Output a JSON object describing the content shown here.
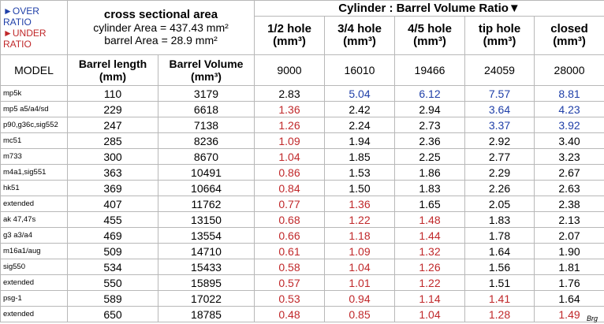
{
  "legend": [
    {
      "text": "►OVER RATIO",
      "tone": "over"
    },
    {
      "text": "►UNDER RATIO",
      "tone": "under"
    }
  ],
  "tones": {
    "over": "#1f3fa8",
    "under": "#c0282a",
    "normal": "#000000"
  },
  "area": {
    "title": "cross sectional area",
    "cylinder": "cylinder Area = 437.43 mm²",
    "barrel": "barrel Area = 28.9 mm²"
  },
  "ratio_title": "Cylinder : Barrel Volume Ratio▼",
  "columns": [
    {
      "name": "1/2 hole",
      "unit": "(mm³)",
      "volume": "9000"
    },
    {
      "name": "3/4 hole",
      "unit": "(mm³)",
      "volume": "16010"
    },
    {
      "name": "4/5 hole",
      "unit": "(mm³)",
      "volume": "19466"
    },
    {
      "name": "tip hole",
      "unit": "(mm³)",
      "volume": "24059"
    },
    {
      "name": "closed",
      "unit": "(mm³)",
      "volume": "28000"
    }
  ],
  "labels": {
    "model": "MODEL",
    "length": "Barrel length (mm)",
    "volume": "Barrel Volume (mm³)"
  },
  "rows": [
    {
      "model": "mp5k",
      "length": "110",
      "volume": "3179",
      "ratios": [
        "2.83",
        "5.04",
        "6.12",
        "7.57",
        "8.81"
      ],
      "tones": [
        "normal",
        "over",
        "over",
        "over",
        "over"
      ]
    },
    {
      "model": "mp5 a5/a4/sd",
      "length": "229",
      "volume": "6618",
      "ratios": [
        "1.36",
        "2.42",
        "2.94",
        "3.64",
        "4.23"
      ],
      "tones": [
        "under",
        "normal",
        "normal",
        "over",
        "over"
      ]
    },
    {
      "model": "p90,g36c,sig552",
      "length": "247",
      "volume": "7138",
      "ratios": [
        "1.26",
        "2.24",
        "2.73",
        "3.37",
        "3.92"
      ],
      "tones": [
        "under",
        "normal",
        "normal",
        "over",
        "over"
      ]
    },
    {
      "model": "mc51",
      "length": "285",
      "volume": "8236",
      "ratios": [
        "1.09",
        "1.94",
        "2.36",
        "2.92",
        "3.40"
      ],
      "tones": [
        "under",
        "normal",
        "normal",
        "normal",
        "normal"
      ]
    },
    {
      "model": "m733",
      "length": "300",
      "volume": "8670",
      "ratios": [
        "1.04",
        "1.85",
        "2.25",
        "2.77",
        "3.23"
      ],
      "tones": [
        "under",
        "normal",
        "normal",
        "normal",
        "normal"
      ]
    },
    {
      "model": "m4a1,sig551",
      "length": "363",
      "volume": "10491",
      "ratios": [
        "0.86",
        "1.53",
        "1.86",
        "2.29",
        "2.67"
      ],
      "tones": [
        "under",
        "normal",
        "normal",
        "normal",
        "normal"
      ]
    },
    {
      "model": "hk51",
      "length": "369",
      "volume": "10664",
      "ratios": [
        "0.84",
        "1.50",
        "1.83",
        "2.26",
        "2.63"
      ],
      "tones": [
        "under",
        "normal",
        "normal",
        "normal",
        "normal"
      ]
    },
    {
      "model": "extended",
      "length": "407",
      "volume": "11762",
      "ratios": [
        "0.77",
        "1.36",
        "1.65",
        "2.05",
        "2.38"
      ],
      "tones": [
        "under",
        "under",
        "normal",
        "normal",
        "normal"
      ]
    },
    {
      "model": "ak 47,47s",
      "length": "455",
      "volume": "13150",
      "ratios": [
        "0.68",
        "1.22",
        "1.48",
        "1.83",
        "2.13"
      ],
      "tones": [
        "under",
        "under",
        "under",
        "normal",
        "normal"
      ]
    },
    {
      "model": "g3 a3/a4",
      "length": "469",
      "volume": "13554",
      "ratios": [
        "0.66",
        "1.18",
        "1.44",
        "1.78",
        "2.07"
      ],
      "tones": [
        "under",
        "under",
        "under",
        "normal",
        "normal"
      ]
    },
    {
      "model": "m16a1/aug",
      "length": "509",
      "volume": "14710",
      "ratios": [
        "0.61",
        "1.09",
        "1.32",
        "1.64",
        "1.90"
      ],
      "tones": [
        "under",
        "under",
        "under",
        "normal",
        "normal"
      ]
    },
    {
      "model": "sig550",
      "length": "534",
      "volume": "15433",
      "ratios": [
        "0.58",
        "1.04",
        "1.26",
        "1.56",
        "1.81"
      ],
      "tones": [
        "under",
        "under",
        "under",
        "normal",
        "normal"
      ]
    },
    {
      "model": "extended",
      "length": "550",
      "volume": "15895",
      "ratios": [
        "0.57",
        "1.01",
        "1.22",
        "1.51",
        "1.76"
      ],
      "tones": [
        "under",
        "under",
        "under",
        "normal",
        "normal"
      ]
    },
    {
      "model": "psg-1",
      "length": "589",
      "volume": "17022",
      "ratios": [
        "0.53",
        "0.94",
        "1.14",
        "1.41",
        "1.64"
      ],
      "tones": [
        "under",
        "under",
        "under",
        "under",
        "normal"
      ]
    },
    {
      "model": "extended",
      "length": "650",
      "volume": "18785",
      "ratios": [
        "0.48",
        "0.85",
        "1.04",
        "1.28",
        "1.49"
      ],
      "tones": [
        "under",
        "under",
        "under",
        "under",
        "under"
      ]
    }
  ],
  "signature": "Brg"
}
